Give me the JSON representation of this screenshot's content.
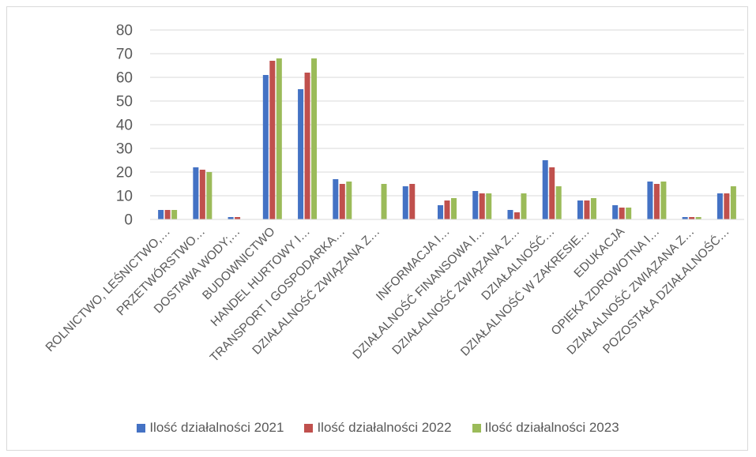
{
  "chart_data": {
    "type": "bar",
    "title": "",
    "xlabel": "",
    "ylabel": "",
    "ylim": [
      0,
      80
    ],
    "yticks": [
      0,
      10,
      20,
      30,
      40,
      50,
      60,
      70,
      80
    ],
    "grid": true,
    "legend_position": "bottom",
    "categories": [
      "ROLNICTWO, LEŚNICTWO,…",
      "PRZETWÓRSTWO…",
      "DOSTAWA WODY;…",
      "BUDOWNICTWO",
      "HANDEL HURTOWY I…",
      "TRANSPORT I GOSPODARKA…",
      "DZIAŁALNOŚĆ ZWIĄZANA Z…",
      "",
      "INFORMACJA I…",
      "DZIAŁALNOŚĆ FINANSOWA I…",
      "DZIAŁALNOŚĆ ZWIĄZANA Z…",
      "DZIAŁALNOŚĆ…",
      "DZIAŁALNOŚĆ W ZAKRESIE…",
      "EDUKACJA",
      "OPIEKA ZDROWOTNA I…",
      "DZIAŁALNOŚĆ ZWIĄZANA Z…",
      "POZOSTAŁA DZIAŁALNOŚĆ…"
    ],
    "series": [
      {
        "name": "Ilość działalności 2021",
        "color": "#4472c4",
        "values": [
          4,
          22,
          1,
          61,
          55,
          17,
          0,
          14,
          6,
          12,
          4,
          25,
          8,
          6,
          16,
          1,
          11
        ]
      },
      {
        "name": "Ilość działalności 2022",
        "color": "#c0504d",
        "values": [
          4,
          21,
          1,
          67,
          62,
          15,
          0,
          15,
          8,
          11,
          3,
          22,
          8,
          5,
          15,
          1,
          11
        ]
      },
      {
        "name": "Ilość działalności 2023",
        "color": "#9bbb59",
        "values": [
          4,
          20,
          0,
          68,
          68,
          16,
          15,
          0,
          9,
          11,
          11,
          14,
          9,
          5,
          16,
          1,
          14
        ]
      }
    ]
  }
}
